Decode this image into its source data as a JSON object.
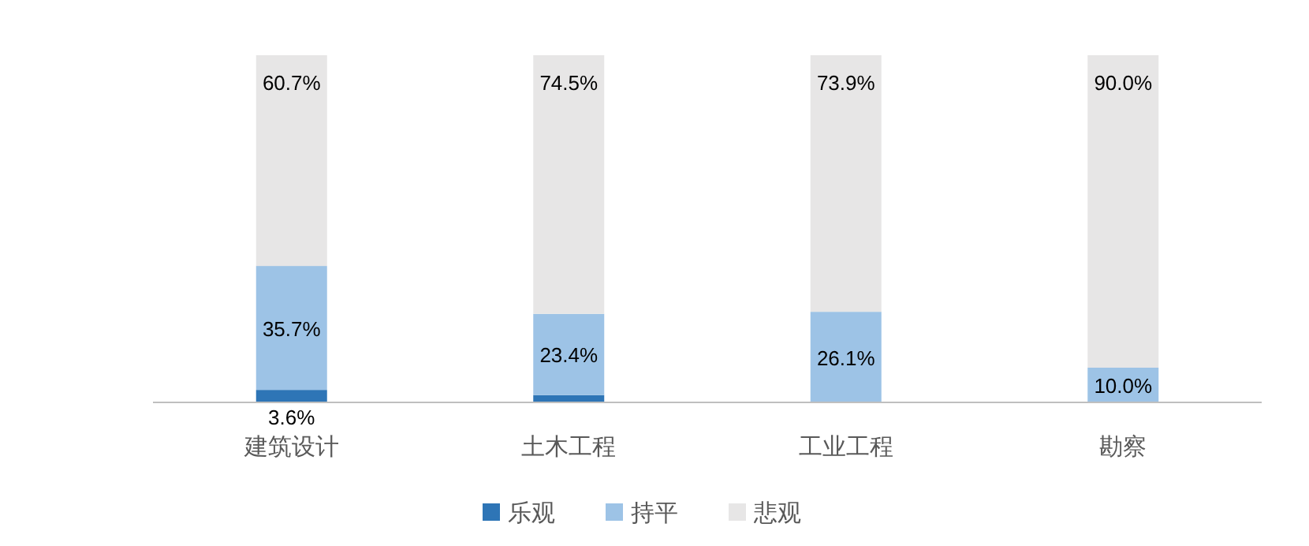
{
  "chart_data": {
    "type": "bar",
    "stacked": true,
    "legend": "bottom",
    "categories": [
      "建筑设计",
      "土木工程",
      "工业工程",
      "勘察"
    ],
    "series": [
      {
        "name": "乐观",
        "color": "#2e75b6",
        "values": [
          3.6,
          2.1,
          null,
          null
        ],
        "value_labels": [
          "3.6%",
          null,
          null,
          null
        ]
      },
      {
        "name": "持平",
        "color": "#9dc3e6",
        "values": [
          35.7,
          23.4,
          26.1,
          10.0
        ],
        "value_labels": [
          "35.7%",
          "23.4%",
          "26.1%",
          "10.0%"
        ]
      },
      {
        "name": "悲观",
        "color": "#e7e6e6",
        "values": [
          60.7,
          74.5,
          73.9,
          90.0
        ],
        "value_labels": [
          "60.7%",
          "74.5%",
          "73.9%",
          "90.0%"
        ]
      }
    ]
  }
}
